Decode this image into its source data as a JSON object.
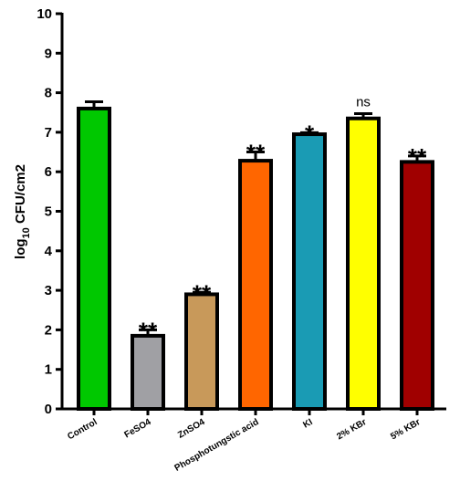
{
  "chart_data": {
    "type": "bar",
    "ylabel_prefix": "log",
    "ylabel_sub": "10",
    "ylabel_suffix": " CFU/cm2",
    "ylim": [
      0,
      10
    ],
    "yticks": [
      "0",
      "1",
      "2",
      "3",
      "4",
      "5",
      "6",
      "7",
      "8",
      "9",
      "10"
    ],
    "categories": [
      "Control",
      "FeSO4",
      "ZnSO4",
      "Phosphotungstic acid",
      "KI",
      "2% KBr",
      "5% KBr"
    ],
    "values": [
      7.6,
      1.85,
      2.9,
      6.28,
      6.95,
      7.35,
      6.25
    ],
    "errors": [
      0.17,
      0.15,
      0.05,
      0.22,
      0.04,
      0.12,
      0.15
    ],
    "significance": [
      "",
      "**",
      "**",
      "**",
      "*",
      "ns",
      "**"
    ],
    "colors": [
      "#00c800",
      "#a0a0a4",
      "#c8995a",
      "#ff6600",
      "#1a9bb4",
      "#ffff00",
      "#a00000"
    ]
  }
}
